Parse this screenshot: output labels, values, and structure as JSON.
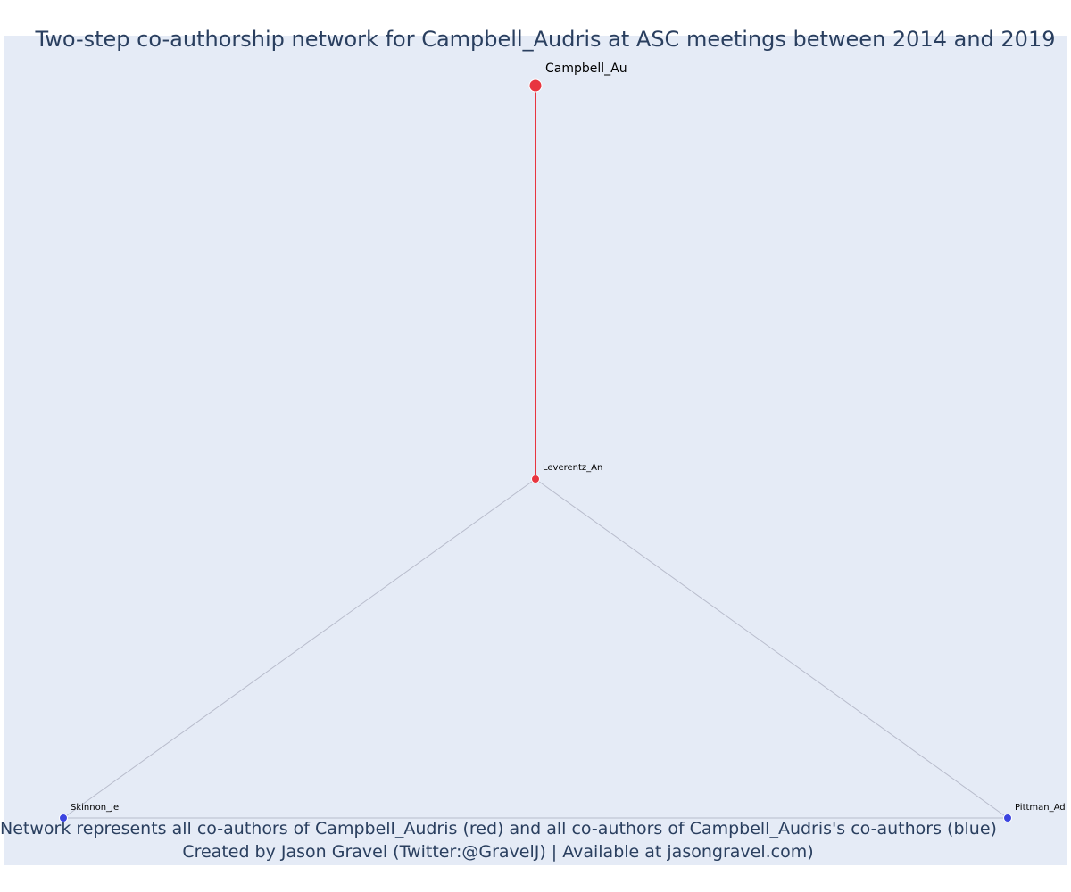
{
  "title": "Two-step co-authorship network for Campbell_Audris at ASC meetings between 2014 and 2019",
  "caption": {
    "line1": "Network represents all co-authors of Campbell_Audris (red) and all co-authors of Campbell_Audris's co-authors (blue)",
    "line2": "Created by Jason Gravel (Twitter:@GravelJ) | Available at jasongravel.com)"
  },
  "colors": {
    "background": "#e5ebf6",
    "first_step": "#e8353f",
    "second_step": "#3b44e0",
    "weak_edge": "#b8bccc"
  },
  "network": {
    "nodes": [
      {
        "id": "Campbell_Au",
        "label": "Campbell_Au",
        "group": "focal"
      },
      {
        "id": "Leverentz_An",
        "label": "Leverentz_An",
        "group": "coauthor"
      },
      {
        "id": "Skinnon_Je",
        "label": "Skinnon_Je",
        "group": "second-step"
      },
      {
        "id": "Pittman_Ad",
        "label": "Pittman_Ad",
        "group": "second-step"
      }
    ],
    "edges": [
      {
        "source": "Campbell_Au",
        "target": "Leverentz_An",
        "kind": "strong"
      },
      {
        "source": "Leverentz_An",
        "target": "Skinnon_Je",
        "kind": "weak"
      },
      {
        "source": "Leverentz_An",
        "target": "Pittman_Ad",
        "kind": "weak"
      },
      {
        "source": "Skinnon_Je",
        "target": "Pittman_Ad",
        "kind": "weak"
      }
    ]
  }
}
